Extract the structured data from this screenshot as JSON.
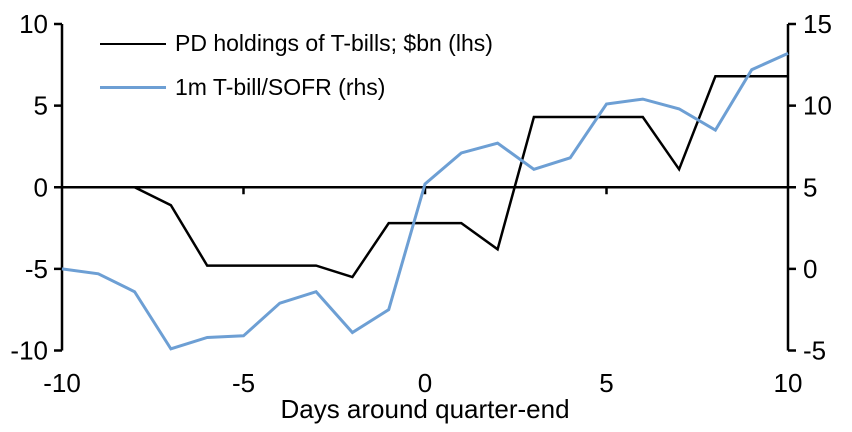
{
  "chart_data": {
    "type": "line",
    "x": [
      -10,
      -9,
      -8,
      -7,
      -6,
      -5,
      -4,
      -3,
      -2,
      -1,
      0,
      1,
      2,
      3,
      4,
      5,
      6,
      7,
      8,
      9,
      10
    ],
    "xlabel": "Days around quarter-end",
    "x_ticks": [
      -10,
      -5,
      0,
      5,
      10
    ],
    "left_axis": {
      "range": [
        -10,
        10
      ],
      "ticks": [
        10,
        5,
        0,
        -5,
        -10
      ]
    },
    "right_axis": {
      "range": [
        -5,
        15
      ],
      "ticks": [
        15,
        10,
        5,
        0,
        -5
      ]
    },
    "grid": false,
    "legend_position": "top-left",
    "zero_line": true,
    "series": [
      {
        "name": "PD holdings of T-bills; $bn (lhs)",
        "axis": "left",
        "color": "#000000",
        "line_width": 2.5,
        "values": [
          0,
          0,
          0,
          -1.1,
          -4.8,
          -4.8,
          -4.8,
          -4.8,
          -5.5,
          -2.2,
          -2.2,
          -2.2,
          -3.8,
          4.3,
          4.3,
          4.3,
          4.3,
          1.1,
          6.8,
          6.8,
          6.8
        ]
      },
      {
        "name": "1m T-bill/SOFR (rhs)",
        "axis": "right",
        "color": "#6D9FD4",
        "line_width": 3,
        "values": [
          0.0,
          -0.3,
          -1.4,
          -4.9,
          -4.2,
          -4.1,
          -2.1,
          -1.4,
          -3.9,
          -2.5,
          5.2,
          7.1,
          7.7,
          6.1,
          6.8,
          10.1,
          10.4,
          9.8,
          8.5,
          12.2,
          13.2
        ]
      }
    ]
  },
  "colors": {
    "background": "#FFFFFF",
    "axis": "#000000"
  }
}
